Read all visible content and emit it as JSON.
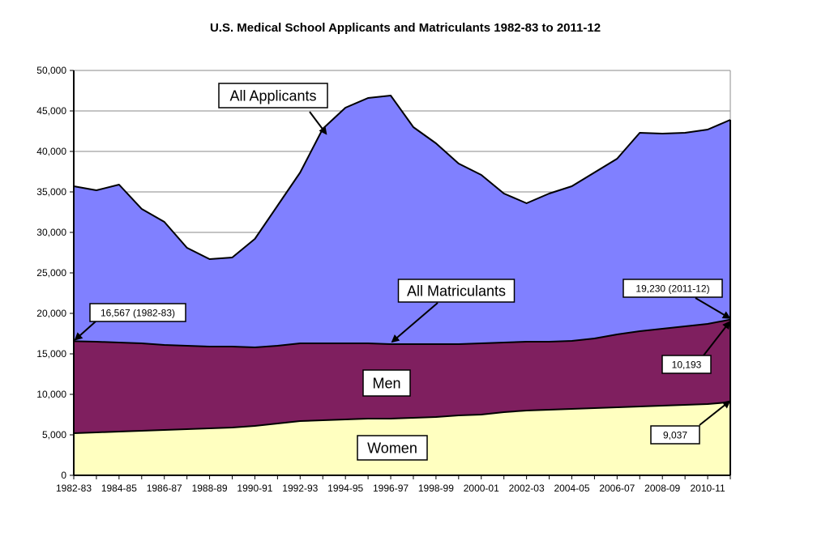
{
  "chart_data": {
    "type": "area",
    "stacked": true,
    "title": "U.S. Medical School Applicants and Matriculants 1982-83 to 2011-12",
    "xlabel": "",
    "ylabel": "",
    "ylim": [
      0,
      50000
    ],
    "yticks": [
      0,
      5000,
      10000,
      15000,
      20000,
      25000,
      30000,
      35000,
      40000,
      45000,
      50000
    ],
    "ytick_labels": [
      "0",
      "5,000",
      "10,000",
      "15,000",
      "20,000",
      "25,000",
      "30,000",
      "35,000",
      "40,000",
      "45,000",
      "50,000"
    ],
    "grid": true,
    "legend": "none (inline labels)",
    "x": [
      "1982-83",
      "1983-84",
      "1984-85",
      "1985-86",
      "1986-87",
      "1987-88",
      "1988-89",
      "1989-90",
      "1990-91",
      "1991-92",
      "1992-93",
      "1993-94",
      "1994-95",
      "1995-96",
      "1996-97",
      "1997-98",
      "1998-99",
      "1999-00",
      "2000-01",
      "2001-02",
      "2002-03",
      "2003-04",
      "2004-05",
      "2005-06",
      "2006-07",
      "2007-08",
      "2008-09",
      "2009-10",
      "2010-11",
      "2011-12"
    ],
    "xtick_labels": [
      "1982-83",
      "1984-85",
      "1986-87",
      "1988-89",
      "1990-91",
      "1992-93",
      "1994-95",
      "1996-97",
      "1998-99",
      "2000-01",
      "2002-03",
      "2004-05",
      "2006-07",
      "2008-09",
      "2010-11"
    ],
    "series": [
      {
        "name": "All Applicants",
        "color": "#8080ff",
        "values": [
          35700,
          35200,
          35900,
          32900,
          31300,
          28100,
          26700,
          26900,
          29200,
          33300,
          37400,
          42800,
          45400,
          46600,
          46900,
          43000,
          41000,
          38500,
          37100,
          34800,
          33600,
          34800,
          35700,
          37400,
          39100,
          42300,
          42200,
          42300,
          42700,
          43900
        ]
      },
      {
        "name": "All Matriculants",
        "color": "#7f1f5f",
        "values": [
          16567,
          16500,
          16400,
          16300,
          16100,
          16000,
          15900,
          15900,
          15800,
          16000,
          16300,
          16300,
          16300,
          16300,
          16200,
          16200,
          16200,
          16200,
          16300,
          16400,
          16500,
          16500,
          16600,
          16900,
          17400,
          17800,
          18100,
          18400,
          18700,
          19230
        ]
      },
      {
        "name": "Women",
        "color": "#ffffc0",
        "values": [
          5200,
          5300,
          5400,
          5500,
          5600,
          5700,
          5800,
          5900,
          6100,
          6400,
          6700,
          6800,
          6900,
          7000,
          7000,
          7100,
          7200,
          7400,
          7500,
          7800,
          8000,
          8100,
          8200,
          8300,
          8400,
          8500,
          8600,
          8700,
          8800,
          9037
        ]
      }
    ],
    "derived": {
      "Men": "All Matriculants minus Women",
      "men_2011_12": 10193
    },
    "annotations": [
      {
        "text": "All Applicants",
        "target": "All Applicants",
        "at": "1993-94"
      },
      {
        "text": "All Matriculants",
        "target": "All Matriculants",
        "at": "1997-98"
      },
      {
        "text": "Men",
        "target": "Men area"
      },
      {
        "text": "Women",
        "target": "Women area"
      },
      {
        "text": "16,567 (1982-83)",
        "target": "All Matriculants",
        "at": "1982-83"
      },
      {
        "text": "19,230 (2011-12)",
        "target": "All Matriculants",
        "at": "2011-12"
      },
      {
        "text": "10,193",
        "target": "Men",
        "at": "2011-12"
      },
      {
        "text": "9,037",
        "target": "Women",
        "at": "2011-12"
      }
    ]
  }
}
